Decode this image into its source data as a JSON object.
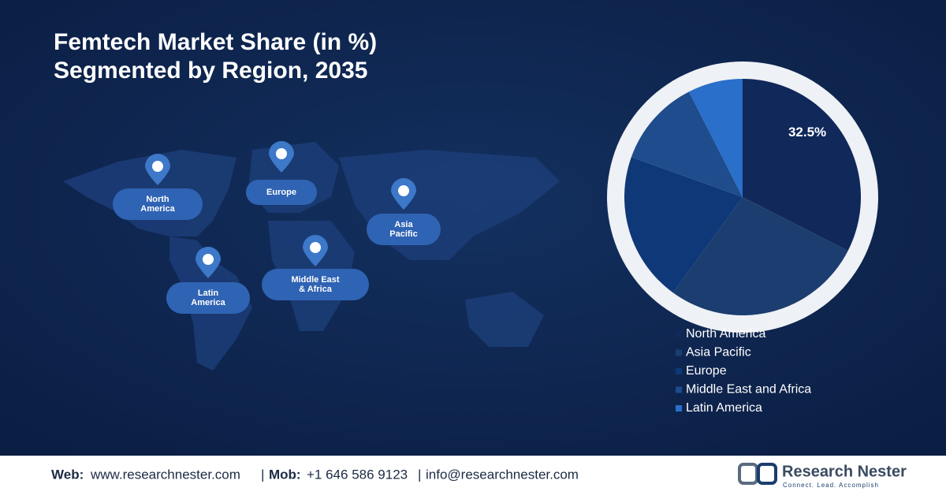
{
  "chart_data": {
    "type": "pie",
    "title": [
      "Femtech Market Share (in %)",
      "Segmented by Region, 2035"
    ],
    "categories": [
      "North America",
      "Asia Pacific",
      "Europe",
      "Middle East and Africa",
      "Latin America"
    ],
    "values": [
      32.5,
      27.5,
      20.5,
      12,
      7.5
    ],
    "value_labels": [
      "32.5%",
      null,
      null,
      null,
      null
    ],
    "colors": [
      "#10285a",
      "#1b3d6f",
      "#0f3878",
      "#1e4c8c",
      "#2a6fc9"
    ],
    "legend": "bottom-right"
  },
  "map_labels": [
    {
      "lines": [
        "North",
        "America"
      ]
    },
    {
      "lines": [
        "Europe"
      ]
    },
    {
      "lines": [
        "Asia",
        "Pacific"
      ]
    },
    {
      "lines": [
        "Middle East",
        "& Africa"
      ]
    },
    {
      "lines": [
        "Latin",
        "America"
      ]
    }
  ],
  "footer": {
    "web_label": "Web:",
    "web": "www.researchnester.com",
    "sep": "|",
    "mob_label": "Mob:",
    "mob": "+1 646 586 9123",
    "email": "info@researchnester.com"
  },
  "logo": {
    "name": "Research Nester",
    "tagline": "Connect. Lead. Accomplish"
  }
}
